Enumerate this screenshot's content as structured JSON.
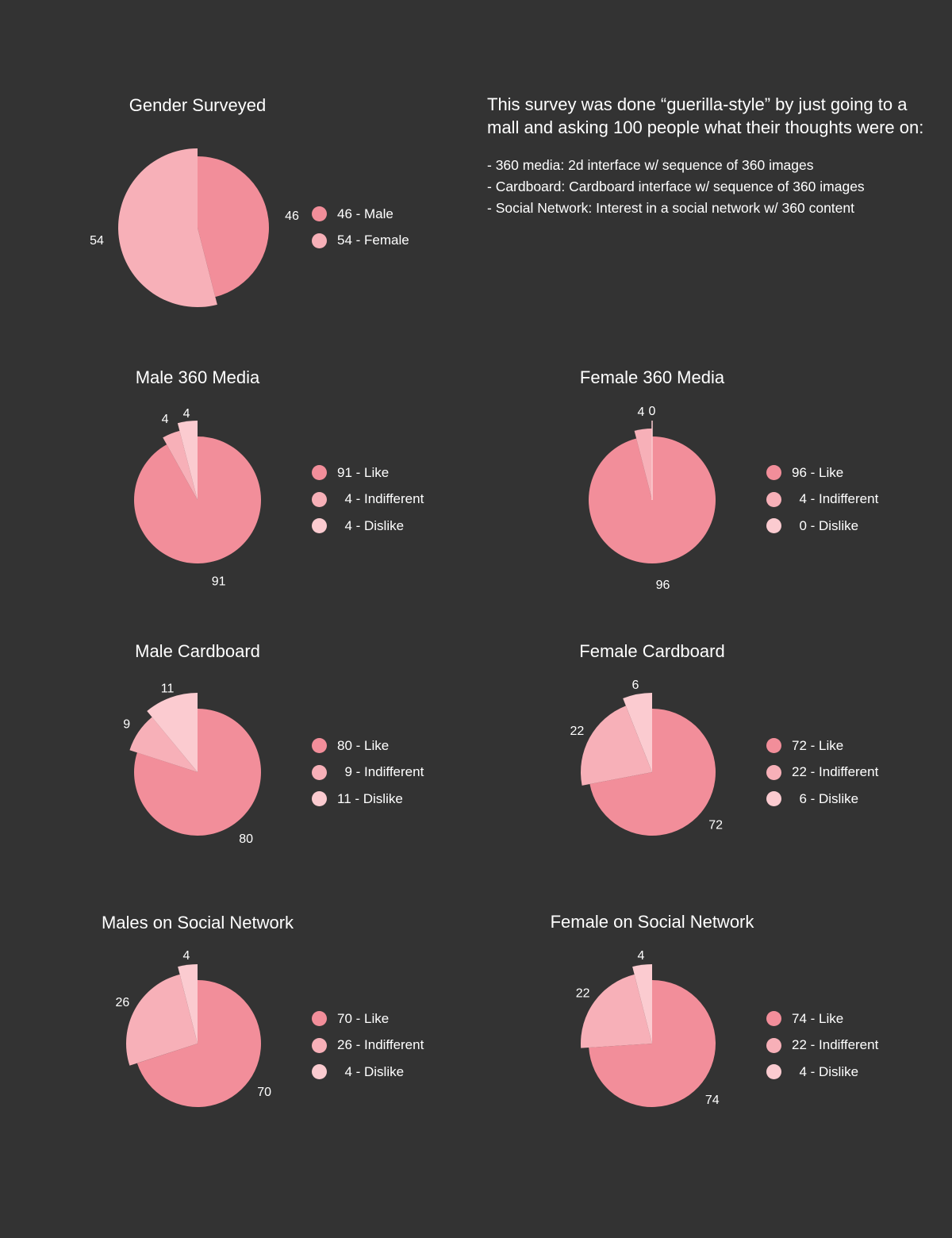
{
  "colors": {
    "background": "#333333",
    "slice_1": "#f28e9a",
    "slice_2": "#f7b0b8",
    "slice_3": "#fbcbd0",
    "text": "#ffffff"
  },
  "intro": {
    "text": "This survey was done “guerilla-style” by just going to a mall and asking 100 people what their thoughts were on:",
    "items": [
      "- 360 media: 2d interface w/ sequence of 360 images",
      "- Cardboard: Cardboard interface w/ sequence of 360 images",
      "- Social Network: Interest in a social network w/ 360 content"
    ]
  },
  "chart_data": [
    {
      "type": "pie",
      "title": "Gender Surveyed",
      "slices": [
        {
          "value": 46,
          "label": "46",
          "legend": "46 - Male"
        },
        {
          "value": 54,
          "label": "54",
          "legend": "54 - Female"
        }
      ]
    },
    {
      "type": "pie",
      "title": "Male 360 Media",
      "slices": [
        {
          "value": 91,
          "label": "91",
          "legend": "91 - Like"
        },
        {
          "value": 4,
          "label": "4",
          "legend": "  4 - Indifferent"
        },
        {
          "value": 4,
          "label": "4",
          "legend": "  4 - Dislike"
        }
      ]
    },
    {
      "type": "pie",
      "title": "Female 360 Media",
      "slices": [
        {
          "value": 96,
          "label": "96",
          "legend": "96 - Like"
        },
        {
          "value": 4,
          "label": "4",
          "legend": "  4 - Indifferent"
        },
        {
          "value": 0,
          "label": "0",
          "legend": "  0 - Dislike"
        }
      ]
    },
    {
      "type": "pie",
      "title": "Male Cardboard",
      "slices": [
        {
          "value": 80,
          "label": "80",
          "legend": "80 - Like"
        },
        {
          "value": 9,
          "label": "9",
          "legend": "  9 - Indifferent"
        },
        {
          "value": 11,
          "label": "11",
          "legend": "11 - Dislike"
        }
      ]
    },
    {
      "type": "pie",
      "title": "Female Cardboard",
      "slices": [
        {
          "value": 72,
          "label": "72",
          "legend": "72 - Like"
        },
        {
          "value": 22,
          "label": "22",
          "legend": "22 - Indifferent"
        },
        {
          "value": 6,
          "label": "6",
          "legend": "  6 - Dislike"
        }
      ]
    },
    {
      "type": "pie",
      "title": "Males on Social Network",
      "slices": [
        {
          "value": 70,
          "label": "70",
          "legend": "70 - Like"
        },
        {
          "value": 26,
          "label": "26",
          "legend": "26 - Indifferent"
        },
        {
          "value": 4,
          "label": "4",
          "legend": "  4 - Dislike"
        }
      ]
    },
    {
      "type": "pie",
      "title": "Female on Social Network",
      "slices": [
        {
          "value": 74,
          "label": "74",
          "legend": "74 - Like"
        },
        {
          "value": 22,
          "label": "22",
          "legend": "22 - Indifferent"
        },
        {
          "value": 4,
          "label": "4",
          "legend": "  4 - Dislike"
        }
      ]
    }
  ]
}
